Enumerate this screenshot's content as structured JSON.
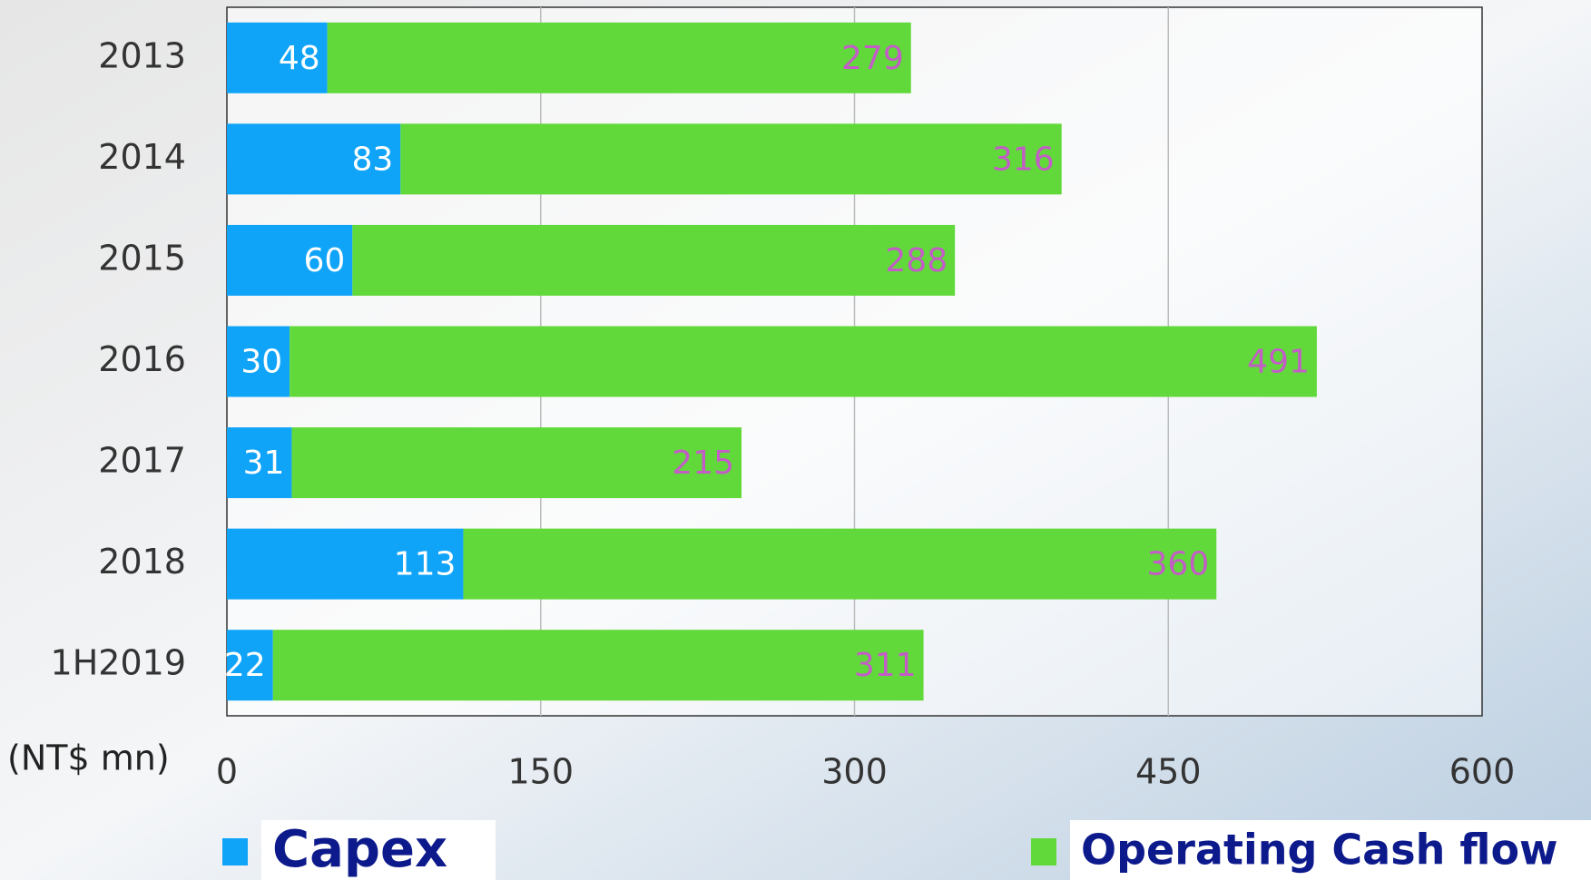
{
  "chart_data": {
    "type": "bar",
    "orientation": "horizontal",
    "stacked": true,
    "categories": [
      "2013",
      "2014",
      "2015",
      "2016",
      "2017",
      "2018",
      "1H2019"
    ],
    "series": [
      {
        "name": "Capex",
        "color": "#10a4f8",
        "label_color": "#ffffff",
        "values": [
          48,
          83,
          60,
          30,
          31,
          113,
          22
        ]
      },
      {
        "name": "Operating Cash flow",
        "color": "#62d93a",
        "label_color": "#c45cc8",
        "values": [
          279,
          316,
          288,
          491,
          215,
          360,
          311
        ]
      }
    ],
    "x_label": "(NT$ mn)",
    "xlim": [
      0,
      600
    ],
    "xticks": [
      0,
      150,
      300,
      450,
      600
    ],
    "grid": true
  }
}
